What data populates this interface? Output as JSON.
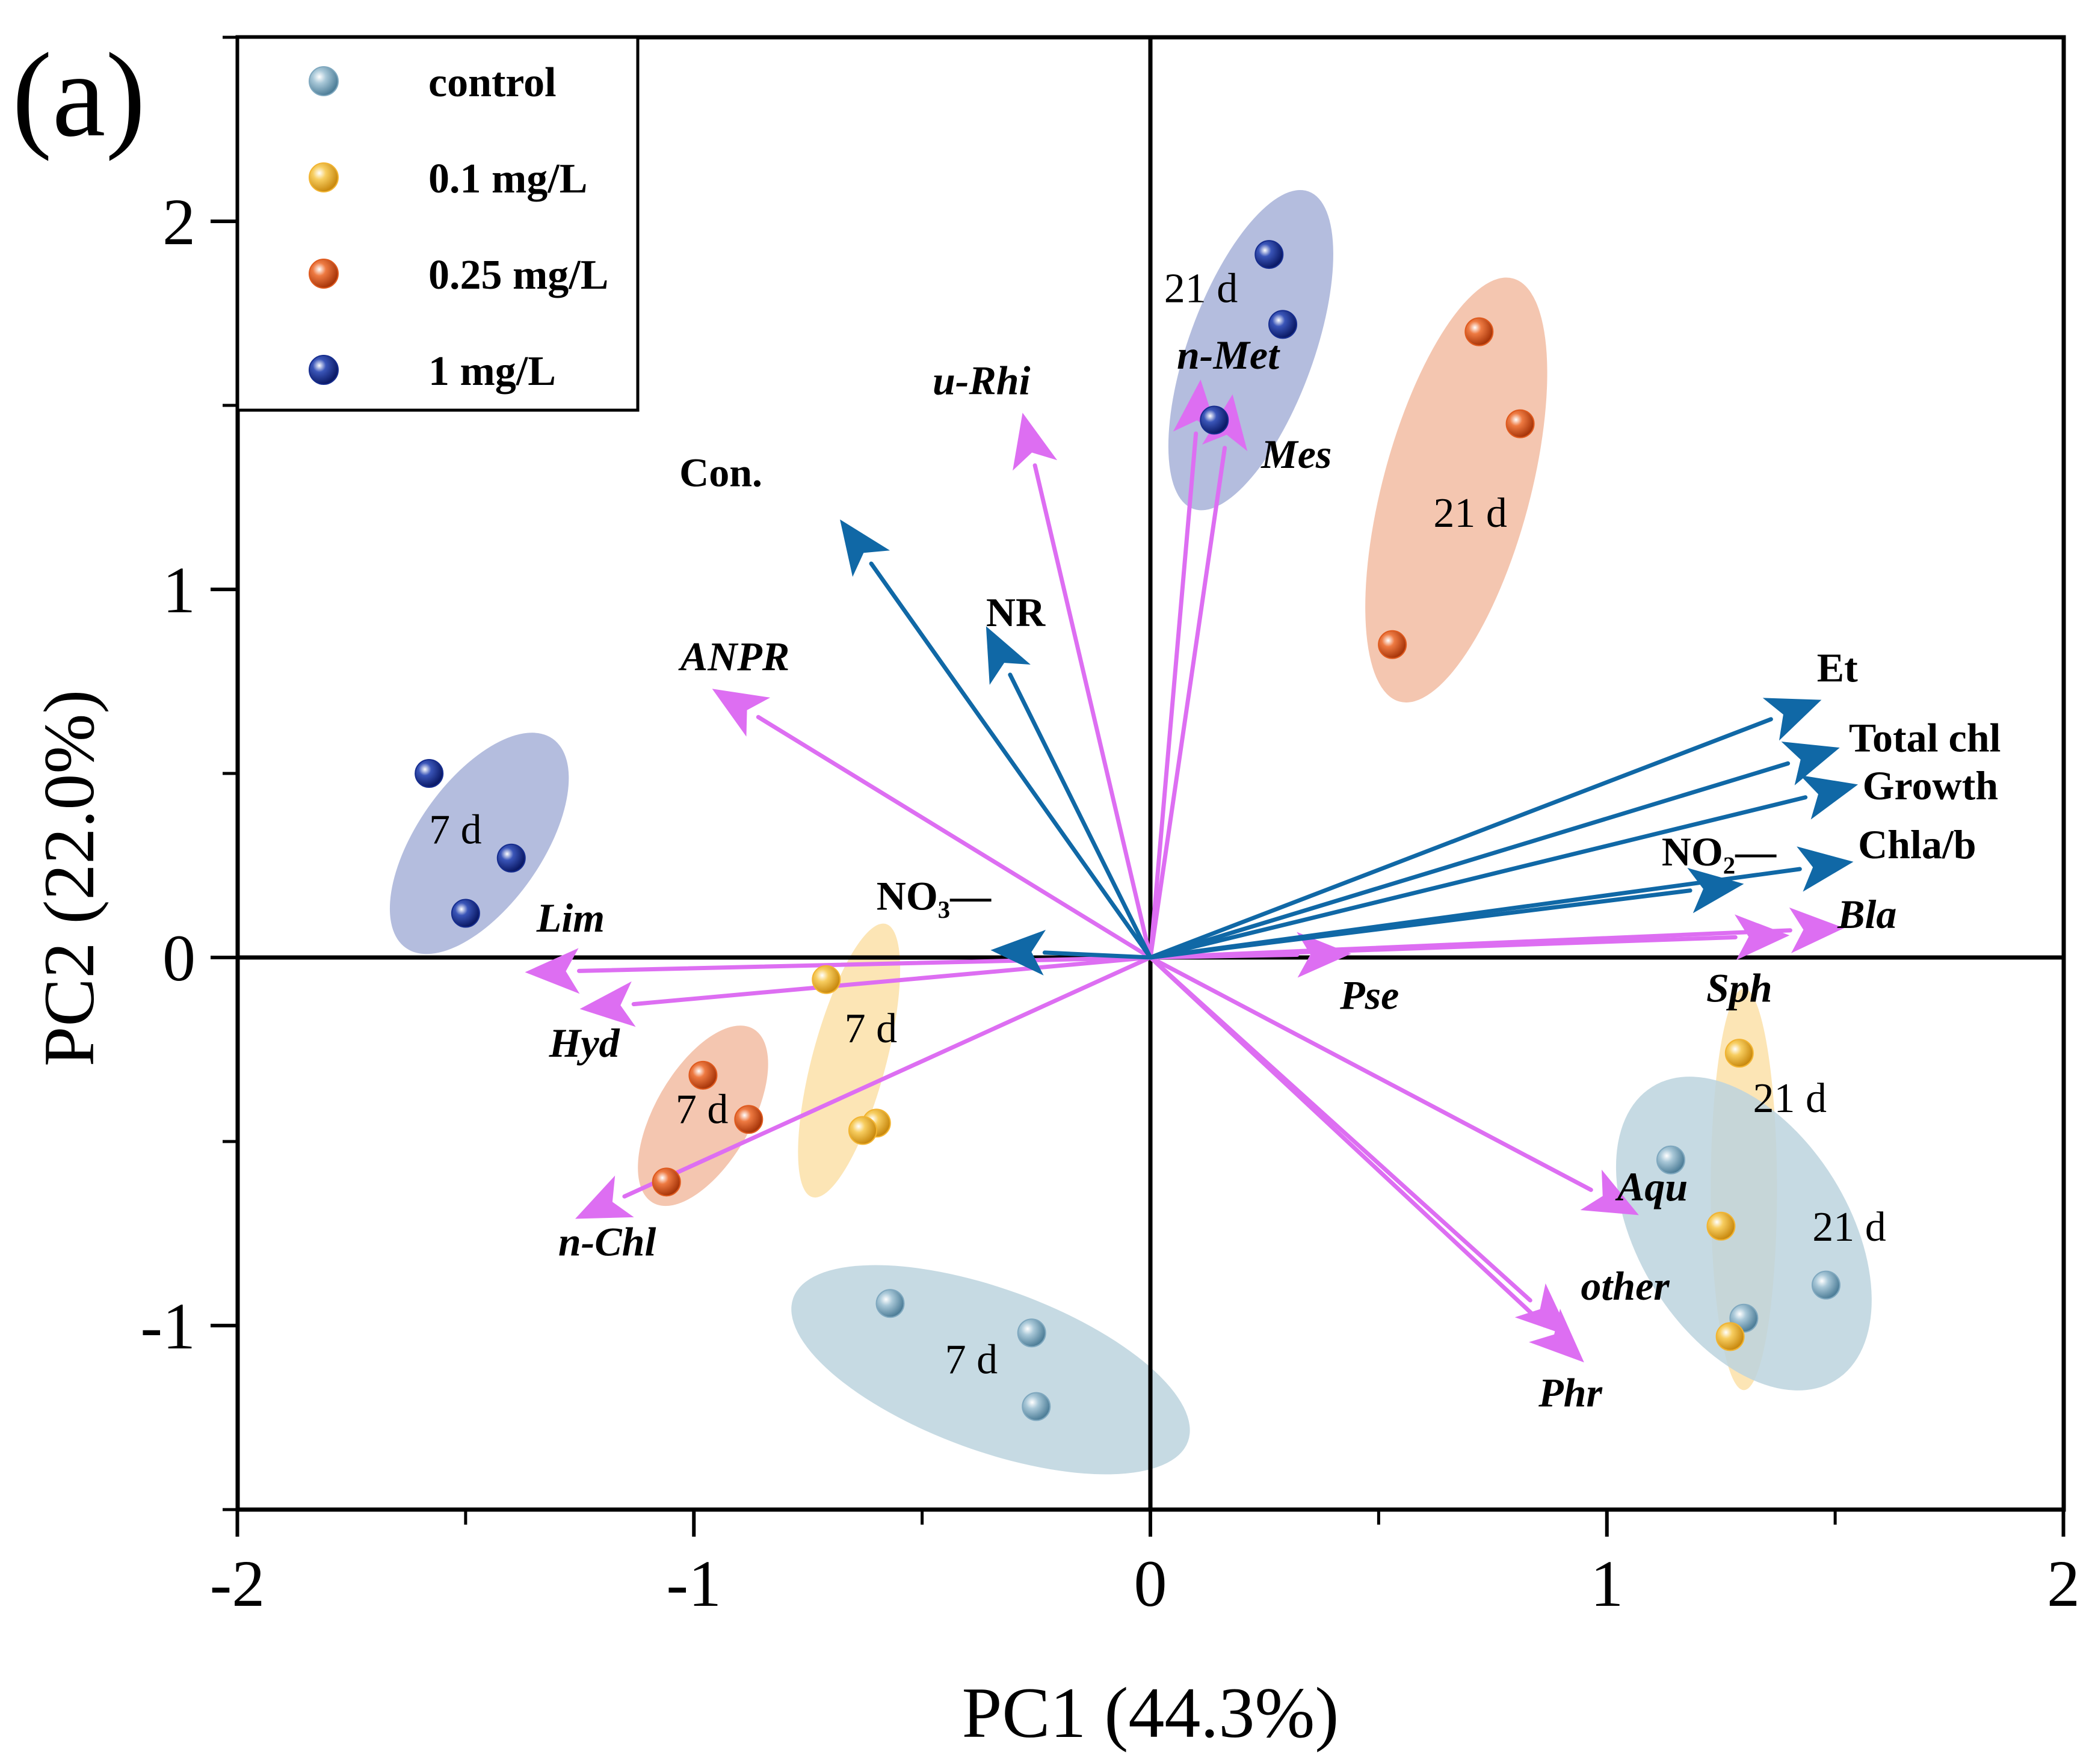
{
  "panel_label": "(a)",
  "chart_data": {
    "type": "scatter",
    "subtype": "pca-biplot",
    "xlabel": "PC1 (44.3%)",
    "ylabel": "PC2 (22.0%)",
    "xlim": [
      -2,
      2
    ],
    "ylim": [
      -1.5,
      2.5
    ],
    "xticks": [
      -2,
      -1,
      0,
      1,
      2
    ],
    "yticks": [
      -1,
      0,
      1,
      2
    ],
    "xtick_labels": [
      "-2",
      "-1",
      "0",
      "1",
      "2"
    ],
    "ytick_labels": [
      "-1",
      "0",
      "1",
      "2"
    ],
    "legend_position": "top-left",
    "colors": {
      "control": "#7fa8bf",
      "low": "#f2b431",
      "mid": "#df5a1e",
      "high": "#162d8f",
      "env_arrow": "#1068a6",
      "taxa_arrow": "#dd6ef2"
    },
    "series": [
      {
        "name": "control",
        "color": "#7fa8bf",
        "points": [
          [
            -0.57,
            -0.94
          ],
          [
            -0.26,
            -1.02
          ],
          [
            -0.25,
            -1.22
          ],
          [
            1.14,
            -0.55
          ],
          [
            1.3,
            -0.98
          ],
          [
            1.48,
            -0.89
          ]
        ]
      },
      {
        "name": "0.1 mg/L",
        "color": "#f2b431",
        "points": [
          [
            -0.71,
            -0.06
          ],
          [
            -0.6,
            -0.45
          ],
          [
            -0.63,
            -0.47
          ],
          [
            1.29,
            -0.26
          ],
          [
            1.25,
            -0.73
          ],
          [
            1.27,
            -1.03
          ]
        ]
      },
      {
        "name": "0.25 mg/L",
        "color": "#df5a1e",
        "points": [
          [
            -0.98,
            -0.32
          ],
          [
            -0.88,
            -0.44
          ],
          [
            -1.06,
            -0.61
          ],
          [
            0.72,
            1.7
          ],
          [
            0.81,
            1.45
          ],
          [
            0.53,
            0.85
          ]
        ]
      },
      {
        "name": "1 mg/L",
        "color": "#162d8f",
        "points": [
          [
            -1.58,
            0.5
          ],
          [
            -1.4,
            0.27
          ],
          [
            -1.5,
            0.12
          ],
          [
            0.26,
            1.91
          ],
          [
            0.29,
            1.72
          ],
          [
            0.14,
            1.46
          ]
        ]
      }
    ],
    "groups": [
      {
        "label": "7 d",
        "series": "control",
        "color": "#bcd3de",
        "center": [
          -0.35,
          -1.12
        ],
        "radii": [
          0.46,
          0.22
        ],
        "angle": 20,
        "label_at": [
          -0.45,
          -1.13
        ]
      },
      {
        "label": "7 d",
        "series": "0.1 mg/L",
        "color": "#fbe0a8",
        "center": [
          -0.66,
          -0.28
        ],
        "radii": [
          0.31,
          0.1
        ],
        "angle": -75,
        "label_at": [
          -0.67,
          -0.23
        ]
      },
      {
        "label": "7 d",
        "series": "0.25 mg/L",
        "color": "#f2bca2",
        "center": [
          -0.98,
          -0.43
        ],
        "radii": [
          0.22,
          0.13
        ],
        "angle": -60,
        "label_at": [
          -1.04,
          -0.45
        ]
      },
      {
        "label": "7 d",
        "series": "1 mg/L",
        "color": "#a7b1d8",
        "center": [
          -1.47,
          0.31
        ],
        "radii": [
          0.28,
          0.17
        ],
        "angle": -55,
        "label_at": [
          -1.58,
          0.31
        ]
      },
      {
        "label": "21 d",
        "series": "1 mg/L",
        "color": "#a7b1d8",
        "center": [
          0.22,
          1.65
        ],
        "radii": [
          0.37,
          0.17
        ],
        "angle": -70,
        "label_at": [
          0.03,
          1.78
        ]
      },
      {
        "label": "21 d",
        "series": "0.25 mg/L",
        "color": "#f2bca2",
        "center": [
          0.67,
          1.27
        ],
        "radii": [
          0.48,
          0.2
        ],
        "angle": -75,
        "label_at": [
          0.62,
          1.17
        ]
      },
      {
        "label": "21 d",
        "series": "0.1 mg/L",
        "color": "#fbe0a8",
        "center": [
          1.3,
          -0.63
        ],
        "radii": [
          0.44,
          0.09
        ],
        "angle": -90,
        "label_at": [
          1.32,
          -0.42
        ]
      },
      {
        "label": "21 d",
        "series": "control",
        "color": "#bcd3de",
        "center": [
          1.3,
          -0.75
        ],
        "radii": [
          0.23,
          0.47
        ],
        "angle": -32,
        "label_at": [
          1.45,
          -0.77
        ]
      }
    ],
    "env_vectors": [
      {
        "label": "Con.",
        "end": [
          -0.68,
          1.19
        ],
        "label_at": [
          -0.85,
          1.28
        ],
        "anchor": "end"
      },
      {
        "label": "NR",
        "end": [
          -0.36,
          0.9
        ],
        "label_at": [
          -0.36,
          0.9
        ],
        "anchor": "start"
      },
      {
        "label": "Et",
        "end": [
          1.47,
          0.7
        ],
        "label_at": [
          1.46,
          0.75
        ],
        "anchor": "start"
      },
      {
        "label": "Total chl",
        "end": [
          1.51,
          0.57
        ],
        "label_at": [
          1.53,
          0.56
        ],
        "anchor": "start"
      },
      {
        "label": "Growth",
        "end": [
          1.55,
          0.47
        ],
        "label_at": [
          1.56,
          0.43
        ],
        "anchor": "start"
      },
      {
        "label": "Chla/b",
        "end": [
          1.54,
          0.26
        ],
        "label_at": [
          1.55,
          0.27
        ],
        "anchor": "start"
      },
      {
        "label": "NO₂—",
        "end": [
          1.3,
          0.2
        ],
        "label_at": [
          1.12,
          0.25
        ],
        "anchor": "start"
      },
      {
        "label": "NO₃—",
        "end": [
          -0.35,
          0.02
        ],
        "label_at": [
          -0.6,
          0.13
        ],
        "anchor": "start"
      }
    ],
    "taxa_vectors": [
      {
        "label": "u-Rhi",
        "end": [
          -0.28,
          1.48
        ],
        "label_at": [
          -0.37,
          1.53
        ],
        "anchor": "middle"
      },
      {
        "label": "n-Met",
        "end": [
          0.11,
          1.57
        ],
        "label_at": [
          0.17,
          1.6
        ],
        "anchor": "middle"
      },
      {
        "label": "Mes",
        "end": [
          0.18,
          1.53
        ],
        "label_at": [
          0.32,
          1.33
        ],
        "anchor": "middle"
      },
      {
        "label": "ANPR",
        "end": [
          -0.96,
          0.73
        ],
        "label_at": [
          -0.91,
          0.78
        ],
        "anchor": "middle"
      },
      {
        "label": "Lim",
        "end": [
          -1.37,
          -0.04
        ],
        "label_at": [
          -1.27,
          0.07
        ],
        "anchor": "middle"
      },
      {
        "label": "Hyd",
        "end": [
          -1.25,
          -0.14
        ],
        "label_at": [
          -1.24,
          -0.27
        ],
        "anchor": "middle"
      },
      {
        "label": "n-Chl",
        "end": [
          -1.26,
          -0.71
        ],
        "label_at": [
          -1.19,
          -0.81
        ],
        "anchor": "middle"
      },
      {
        "label": "Pse",
        "end": [
          0.44,
          0.01
        ],
        "label_at": [
          0.48,
          -0.14
        ],
        "anchor": "middle"
      },
      {
        "label": "Bla",
        "end": [
          1.52,
          0.08
        ],
        "label_at": [
          1.57,
          0.08
        ],
        "anchor": "middle"
      },
      {
        "label": "Sph",
        "end": [
          1.4,
          0.06
        ],
        "label_at": [
          1.29,
          -0.12
        ],
        "anchor": "middle"
      },
      {
        "label": "Aqu",
        "end": [
          1.07,
          -0.7
        ],
        "label_at": [
          1.1,
          -0.66
        ],
        "anchor": "middle"
      },
      {
        "label": "other",
        "end": [
          0.92,
          -1.03
        ],
        "label_at": [
          1.04,
          -0.93
        ],
        "anchor": "middle"
      },
      {
        "label": "Phr",
        "end": [
          0.95,
          -1.1
        ],
        "label_at": [
          0.92,
          -1.22
        ],
        "anchor": "middle"
      }
    ]
  }
}
